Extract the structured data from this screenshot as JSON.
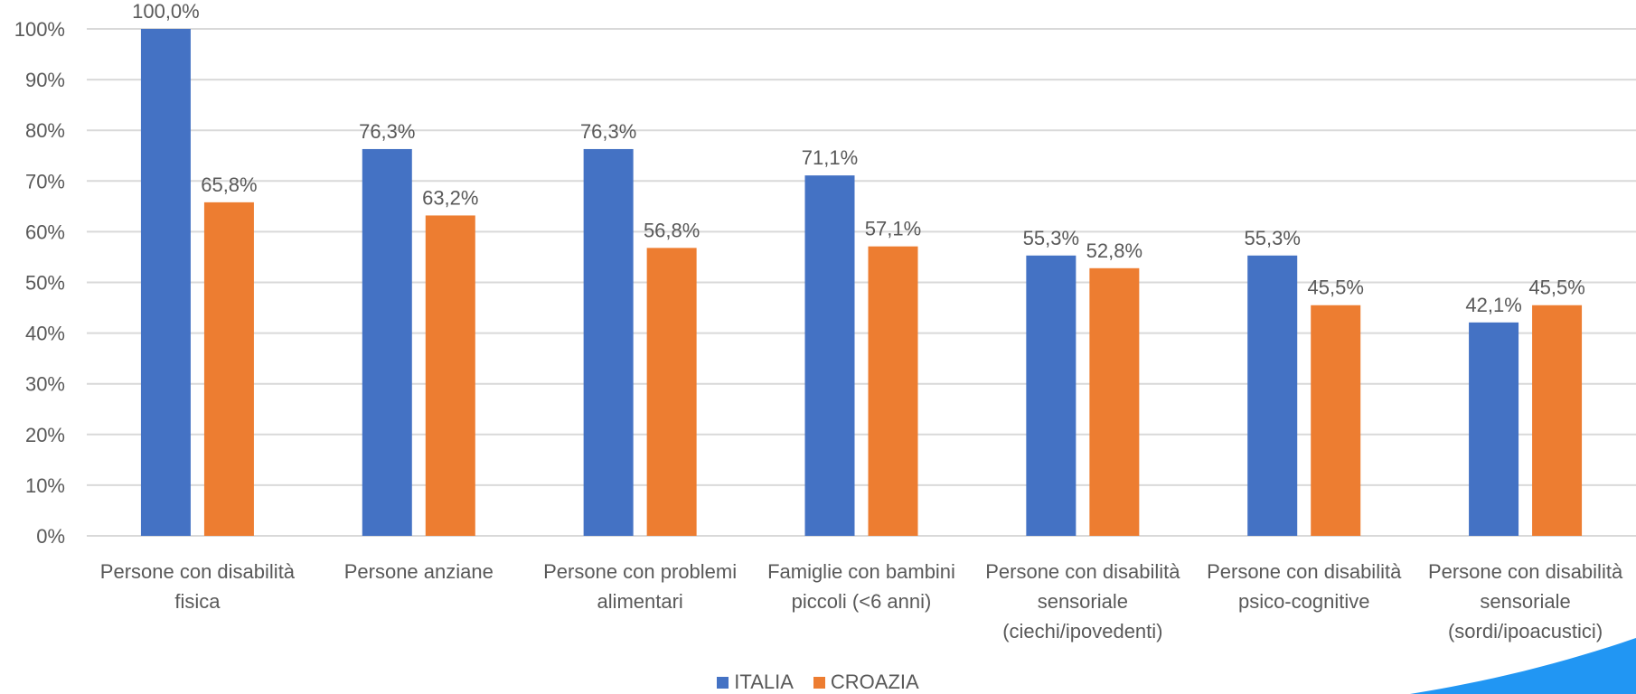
{
  "chart_data": {
    "type": "bar",
    "categories": [
      [
        "Persone con disabilità",
        "fisica"
      ],
      [
        "Persone anziane"
      ],
      [
        "Persone con problemi",
        "alimentari"
      ],
      [
        "Famiglie con bambini",
        "piccoli (<6 anni)"
      ],
      [
        "Persone con disabilità",
        "sensoriale",
        "(ciechi/ipovedenti)"
      ],
      [
        "Persone con disabilità",
        "psico-cognitive"
      ],
      [
        "Persone con disabilità",
        "sensoriale",
        "(sordi/ipoacustici)"
      ]
    ],
    "series": [
      {
        "name": "ITALIA",
        "color": "#4472C4",
        "values": [
          100.0,
          76.3,
          76.3,
          71.1,
          55.3,
          55.3,
          42.1
        ],
        "labels": [
          "100,0%",
          "76,3%",
          "76,3%",
          "71,1%",
          "55,3%",
          "55,3%",
          "42,1%"
        ]
      },
      {
        "name": "CROAZIA",
        "color": "#ED7D31",
        "values": [
          65.8,
          63.2,
          56.8,
          57.1,
          52.8,
          45.5,
          45.5
        ],
        "labels": [
          "65,8%",
          "63,2%",
          "56,8%",
          "57,1%",
          "52,8%",
          "45,5%",
          "45,5%"
        ]
      }
    ],
    "yticks": [
      "0%",
      "10%",
      "20%",
      "30%",
      "40%",
      "50%",
      "60%",
      "70%",
      "80%",
      "90%",
      "100%"
    ],
    "ylim": [
      0,
      100
    ],
    "grid": true,
    "legend_position": "bottom",
    "title": "",
    "xlabel": "",
    "ylabel": ""
  }
}
